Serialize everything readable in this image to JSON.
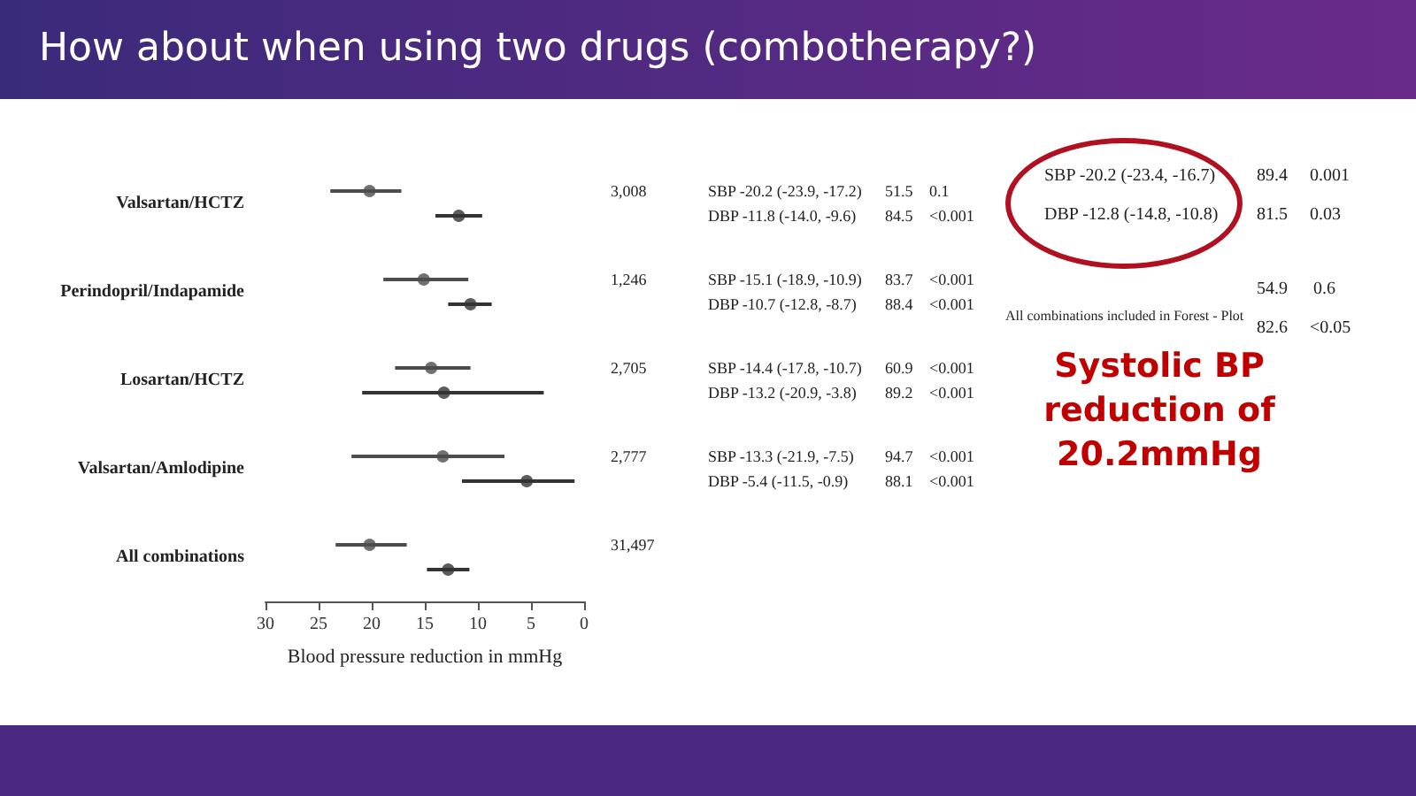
{
  "chart_data": {
    "type": "scatter",
    "orientation": "horizontal",
    "title": "How about when using two drugs (combotherapy?)",
    "xlabel": "Blood pressure reduction in mmHg",
    "categories": [
      "Valsartan/HCTZ",
      "Perindopril/Indapamide",
      "Losartan/HCTZ",
      "Valsartan/Amlodipine",
      "All combinations"
    ],
    "xlim": [
      30,
      0
    ],
    "xticks": [
      30,
      25,
      20,
      15,
      10,
      5,
      0
    ],
    "marker": "circle",
    "grid": false,
    "series": [
      {
        "color": "#4d4d4d",
        "values": [
          20.2,
          15.1,
          14.4,
          13.3,
          20.2
        ],
        "errors": [
          [
            17.2,
            23.9
          ],
          [
            10.9,
            18.9
          ],
          [
            10.7,
            17.8
          ],
          [
            7.5,
            21.9
          ],
          [
            16.7,
            23.4
          ]
        ]
      },
      {
        "color": "#333333",
        "values": [
          11.8,
          10.7,
          13.2,
          5.4,
          12.8
        ],
        "errors": [
          [
            9.6,
            14.0
          ],
          [
            8.7,
            12.8
          ],
          [
            3.8,
            20.9
          ],
          [
            0.9,
            11.5
          ],
          [
            10.8,
            14.8
          ]
        ]
      }
    ],
    "annotations": [
      "3,008",
      "SBP -20.2 (-23.9, -17.2)",
      "51.5",
      "0.1",
      "DBP -11.8 (-14.0, -9.6)",
      "84.5",
      "<0.001",
      "1,246",
      "SBP -15.1 (-18.9, -10.9)",
      "83.7",
      "<0.001",
      "DBP -10.7 (-12.8, -8.7)",
      "88.4",
      "<0.001",
      "2,705",
      "SBP -14.4 (-17.8, -10.7)",
      "60.9",
      "<0.001",
      "DBP -13.2 (-20.9, -3.8)",
      "89.2",
      "<0.001",
      "2,777",
      "SBP -13.3 (-21.9, -7.5)",
      "94.7",
      "<0.001",
      "DBP -5.4 (-11.5, -0.9)",
      "88.1",
      "<0.001",
      "31,497",
      "SBP -20.2 (-23.4, -16.7)",
      "89.4",
      "0.001",
      "DBP -12.8 (-14.8, -10.8)",
      "81.5",
      "0.03",
      "All combinations included in Forest - Plot",
      "54.9",
      "0.6",
      "82.6",
      "<0.05",
      "Systolic BP reduction of 20.2mmHg"
    ]
  }
}
